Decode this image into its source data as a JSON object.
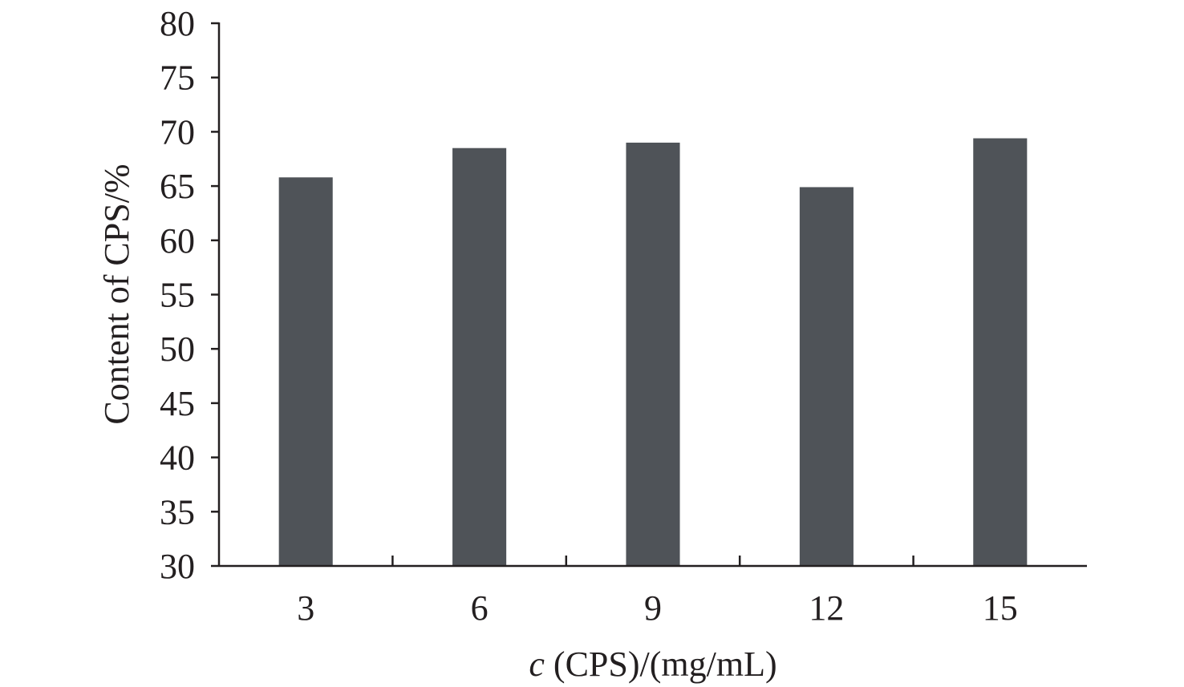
{
  "chart_data": {
    "type": "bar",
    "categories": [
      "3",
      "6",
      "9",
      "12",
      "15"
    ],
    "values": [
      65.8,
      68.5,
      69.0,
      64.9,
      69.4
    ],
    "xlabel_italic": "c",
    "xlabel_rest": " (CPS)/(mg/mL)",
    "ylabel": "Content of CPS/%",
    "ylim": [
      30,
      80
    ],
    "yticks": [
      30,
      35,
      40,
      45,
      50,
      55,
      60,
      65,
      70,
      75,
      80
    ],
    "grid": false,
    "legend": "none",
    "bar_color": "#4f5358",
    "axis_color": "#231f20"
  }
}
